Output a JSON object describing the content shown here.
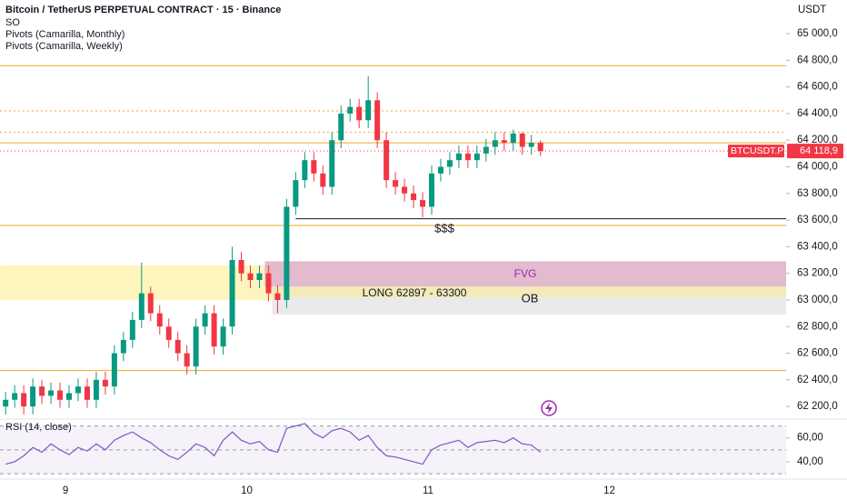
{
  "chart_data": [
    {
      "type": "candlestick",
      "title": "Bitcoin / TetherUS PERPETUAL CONTRACT · 15 · Binance",
      "indicators": [
        "SO",
        "Pivots (Camarilla, Monthly)",
        "Pivots (Camarilla, Weekly)"
      ],
      "unit": "USDT",
      "symbol": "BTCUSDT.P",
      "last_price": {
        "value": 64118.9,
        "label": "64 118,9"
      },
      "up_color": "#089981",
      "down_color": "#f23645",
      "x": [
        8.67,
        8.72,
        8.77,
        8.82,
        8.87,
        8.92,
        8.97,
        9.02,
        9.07,
        9.12,
        9.17,
        9.22,
        9.27,
        9.32,
        9.37,
        9.42,
        9.47,
        9.52,
        9.57,
        9.62,
        9.67,
        9.72,
        9.77,
        9.82,
        9.87,
        9.92,
        9.97,
        10.02,
        10.07,
        10.12,
        10.17,
        10.22,
        10.27,
        10.32,
        10.37,
        10.42,
        10.47,
        10.52,
        10.57,
        10.62,
        10.67,
        10.72,
        10.77,
        10.82,
        10.87,
        10.92,
        10.97,
        11.02,
        11.07,
        11.12,
        11.17,
        11.22,
        11.27,
        11.32,
        11.37,
        11.42,
        11.47,
        11.52,
        11.57,
        11.62
      ],
      "open": [
        62200,
        62250,
        62300,
        62200,
        62350,
        62280,
        62320,
        62250,
        62300,
        62350,
        62250,
        62400,
        62350,
        62600,
        62700,
        62850,
        63050,
        62900,
        62800,
        62700,
        62600,
        62500,
        62800,
        62900,
        62650,
        62800,
        63300,
        63200,
        63150,
        63200,
        63050,
        63000,
        63700,
        63900,
        64050,
        63950,
        63850,
        64200,
        64400,
        64450,
        64350,
        64500,
        64200,
        63900,
        63850,
        63800,
        63750,
        63700,
        63950,
        64000,
        64050,
        64100,
        64050,
        64100,
        64150,
        64200,
        64180,
        64250,
        64150,
        64180
      ],
      "high": [
        62310,
        62360,
        62360,
        62410,
        62400,
        62380,
        62380,
        62360,
        62410,
        62410,
        62460,
        62460,
        62660,
        62760,
        62910,
        63280,
        63100,
        62960,
        62860,
        62760,
        62660,
        62860,
        62960,
        62960,
        62860,
        63400,
        63360,
        63260,
        63260,
        63260,
        63110,
        63760,
        63960,
        64110,
        64110,
        64010,
        64260,
        64460,
        64510,
        64510,
        64680,
        64560,
        64260,
        63960,
        63910,
        63860,
        63810,
        64010,
        64060,
        64110,
        64160,
        64160,
        64160,
        64210,
        64260,
        64260,
        64280,
        64260,
        64240,
        64200
      ],
      "low": [
        62140,
        62190,
        62140,
        62140,
        62220,
        62220,
        62190,
        62190,
        62240,
        62190,
        62190,
        62290,
        62290,
        62540,
        62640,
        62790,
        62840,
        62740,
        62640,
        62540,
        62440,
        62440,
        62740,
        62590,
        62590,
        62740,
        63140,
        63090,
        63090,
        62990,
        62900,
        62940,
        63640,
        63840,
        63890,
        63790,
        63790,
        64140,
        64340,
        64290,
        64290,
        64140,
        63840,
        63790,
        63740,
        63690,
        63620,
        63640,
        63890,
        63940,
        63990,
        63990,
        63990,
        64040,
        64090,
        64120,
        64120,
        64090,
        64090,
        64080
      ],
      "close": [
        62250,
        62300,
        62200,
        62350,
        62280,
        62320,
        62250,
        62300,
        62350,
        62250,
        62400,
        62350,
        62600,
        62700,
        62850,
        63050,
        62900,
        62800,
        62700,
        62600,
        62500,
        62800,
        62900,
        62650,
        62800,
        63300,
        63200,
        63150,
        63200,
        63050,
        63000,
        63700,
        63900,
        64050,
        63950,
        63850,
        64200,
        64400,
        64450,
        64350,
        64500,
        64200,
        63900,
        63850,
        63800,
        63750,
        63700,
        63950,
        64000,
        64050,
        64100,
        64050,
        64100,
        64150,
        64200,
        64180,
        64250,
        64150,
        64180,
        64118.9
      ],
      "levels": [
        {
          "value": 64760,
          "color": "#f5a623",
          "style": "solid"
        },
        {
          "value": 64420,
          "color": "#f5a623",
          "style": "dotted"
        },
        {
          "value": 64260,
          "color": "#f5a623",
          "style": "dotted"
        },
        {
          "value": 64180,
          "color": "#f5a623",
          "style": "solid"
        },
        {
          "value": 63560,
          "color": "#f5a623",
          "style": "solid"
        },
        {
          "value": 62470,
          "color": "#f5a623",
          "style": "solid"
        }
      ],
      "trend_line": {
        "value": 63610,
        "start": 10.27,
        "color": "#131722"
      },
      "zones": [
        {
          "from": 63000,
          "to": 63260,
          "start": 8.64,
          "end": 10.14,
          "color": "#fdf1a8"
        },
        {
          "from": 63100,
          "to": 63290,
          "start": 10.1,
          "color": "#d9a3bd"
        },
        {
          "from": 62890,
          "to": 63100,
          "start": 10.14,
          "color": "#e3e3e3"
        },
        {
          "from": 63020,
          "to": 63100,
          "start": 10.14,
          "color": "#f6eaa6"
        }
      ],
      "annotations": [
        "$$$",
        "FVG",
        "LONG 62897 - 63300",
        "OB"
      ],
      "xlim": [
        8.639,
        12.975
      ],
      "xticks": [
        9,
        10,
        11,
        12
      ],
      "ylim": [
        62112,
        65253
      ],
      "yticks": [
        {
          "value": 62200,
          "label": "62 200,0"
        },
        {
          "value": 62400,
          "label": "62 400,0"
        },
        {
          "value": 62600,
          "label": "62 600,0"
        },
        {
          "value": 62800,
          "label": "62 800,0"
        },
        {
          "value": 63000,
          "label": "63 000,0"
        },
        {
          "value": 63200,
          "label": "63 200,0"
        },
        {
          "value": 63400,
          "label": "63 400,0"
        },
        {
          "value": 63600,
          "label": "63 600,0"
        },
        {
          "value": 63800,
          "label": "63 800,0"
        },
        {
          "value": 64000,
          "label": "64 000,0"
        },
        {
          "value": 64200,
          "label": "64 200,0"
        },
        {
          "value": 64400,
          "label": "64 400,0"
        },
        {
          "value": 64600,
          "label": "64 600,0"
        },
        {
          "value": 64800,
          "label": "64 800,0"
        },
        {
          "value": 65000,
          "label": "65 000,0"
        }
      ],
      "grid": false
    },
    {
      "type": "line",
      "title": "RSI (14, close)",
      "color": "#7e57c2",
      "x": [
        8.67,
        8.72,
        8.77,
        8.82,
        8.87,
        8.92,
        8.97,
        9.02,
        9.07,
        9.12,
        9.17,
        9.22,
        9.27,
        9.32,
        9.37,
        9.42,
        9.47,
        9.52,
        9.57,
        9.62,
        9.67,
        9.72,
        9.77,
        9.82,
        9.87,
        9.92,
        9.97,
        10.02,
        10.07,
        10.12,
        10.17,
        10.22,
        10.27,
        10.32,
        10.37,
        10.42,
        10.47,
        10.52,
        10.57,
        10.62,
        10.67,
        10.72,
        10.77,
        10.82,
        10.87,
        10.92,
        10.97,
        11.02,
        11.07,
        11.12,
        11.17,
        11.22,
        11.27,
        11.32,
        11.37,
        11.42,
        11.47,
        11.52,
        11.57,
        11.62
      ],
      "values": [
        38,
        40,
        45,
        52,
        48,
        55,
        50,
        46,
        52,
        49,
        55,
        50,
        58,
        62,
        65,
        60,
        56,
        50,
        45,
        42,
        48,
        55,
        52,
        45,
        58,
        65,
        58,
        55,
        57,
        50,
        48,
        68,
        70,
        72,
        64,
        60,
        66,
        68,
        65,
        58,
        62,
        52,
        45,
        44,
        42,
        40,
        38,
        50,
        54,
        56,
        58,
        52,
        56,
        57,
        58,
        56,
        60,
        55,
        54,
        48
      ],
      "levels": [
        70,
        50,
        30
      ],
      "xlim": [
        8.639,
        12.975
      ],
      "ylim": [
        27,
        75
      ],
      "yticks": [
        {
          "value": 60,
          "label": "60,00"
        },
        {
          "value": 40,
          "label": "40,00"
        }
      ]
    }
  ]
}
